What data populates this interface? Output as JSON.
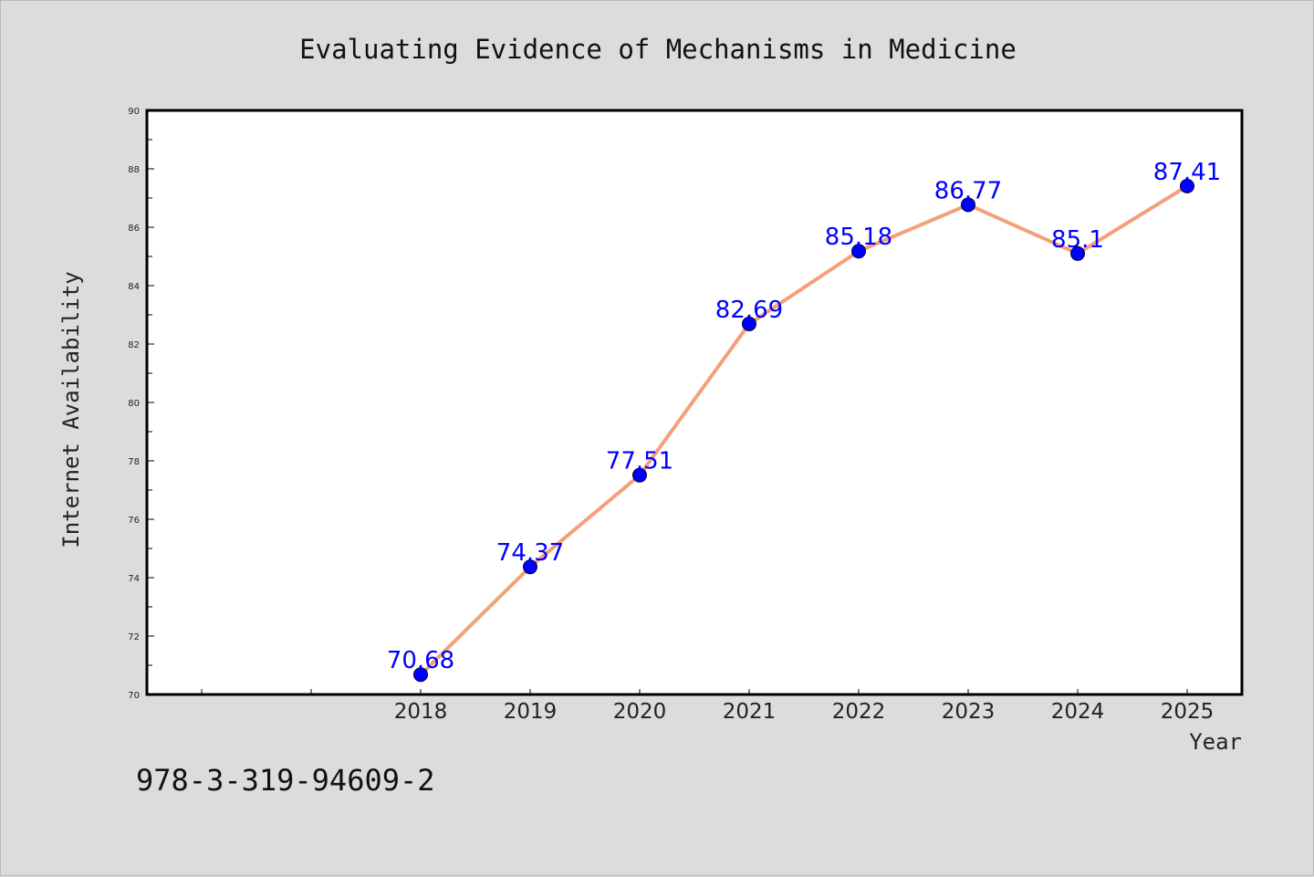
{
  "chart_data": {
    "type": "line",
    "title": "Evaluating Evidence of Mechanisms in Medicine",
    "xlabel": "Year",
    "ylabel": "Internet Availability",
    "x": [
      "2018",
      "2019",
      "2020",
      "2021",
      "2022",
      "2023",
      "2024",
      "2025"
    ],
    "values": [
      70.68,
      74.37,
      77.51,
      82.69,
      85.18,
      86.77,
      85.1,
      87.41
    ],
    "data_labels": [
      "70.68",
      "74.37",
      "77.51",
      "82.69",
      "85.18",
      "86.77",
      "85.1",
      "87.41"
    ],
    "ylim": [
      70,
      90
    ],
    "y_ticks": [
      "70",
      "72",
      "74",
      "76",
      "78",
      "80",
      "82",
      "84",
      "86",
      "88",
      "90"
    ],
    "grid": false,
    "colors": {
      "line": "#f4a07a",
      "marker": "#0000ff",
      "label": "#0000ff",
      "background": "#dcdcdc",
      "plot_area": "#ffffff"
    }
  },
  "footer": {
    "isbn": "978-3-319-94609-2"
  }
}
